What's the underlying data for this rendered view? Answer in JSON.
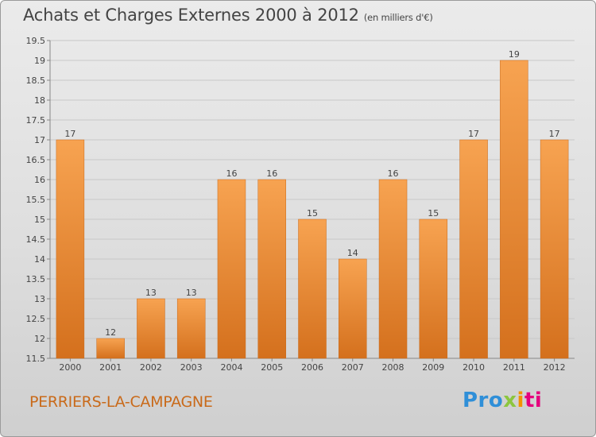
{
  "header": {
    "title": "Achats et Charges Externes 2000 à 2012",
    "subtitle": "(en milliers d'€)"
  },
  "footer": {
    "commune": "PERRIERS-LA-CAMPAGNE",
    "logo": {
      "parts": [
        "Pro",
        "x",
        "i",
        "ti"
      ],
      "colors": [
        "#2f8fd8",
        "#8cc63f",
        "#f39200",
        "#e5007d"
      ]
    }
  },
  "colors": {
    "bar_top": "#f7a351",
    "bar_bottom": "#d4701d",
    "grid": "#c8c8c8",
    "text": "#444444",
    "accent": "#c96a1a"
  },
  "chart_data": {
    "type": "bar",
    "title": "Achats et Charges Externes 2000 à 2012",
    "subtitle": "(en milliers d'€)",
    "xlabel": "",
    "ylabel": "",
    "categories": [
      "2000",
      "2001",
      "2002",
      "2003",
      "2004",
      "2005",
      "2006",
      "2007",
      "2008",
      "2009",
      "2010",
      "2011",
      "2012"
    ],
    "values": [
      17,
      12,
      13,
      13,
      16,
      16,
      15,
      14,
      16,
      15,
      17,
      19,
      17
    ],
    "data_labels": [
      "17",
      "12",
      "13",
      "13",
      "16",
      "16",
      "15",
      "14",
      "16",
      "15",
      "17",
      "19",
      "17"
    ],
    "ylim": [
      11.5,
      19.5
    ],
    "yticks": [
      11.5,
      12,
      12.5,
      13,
      13.5,
      14,
      14.5,
      15,
      15.5,
      16,
      16.5,
      17,
      17.5,
      18,
      18.5,
      19,
      19.5
    ],
    "ytick_labels": [
      "11.5",
      "12",
      "12.5",
      "13",
      "13.5",
      "14",
      "14.5",
      "15",
      "15.5",
      "16",
      "16.5",
      "17",
      "17.5",
      "18",
      "18.5",
      "19",
      "19.5"
    ],
    "grid": true,
    "legend": "none"
  }
}
